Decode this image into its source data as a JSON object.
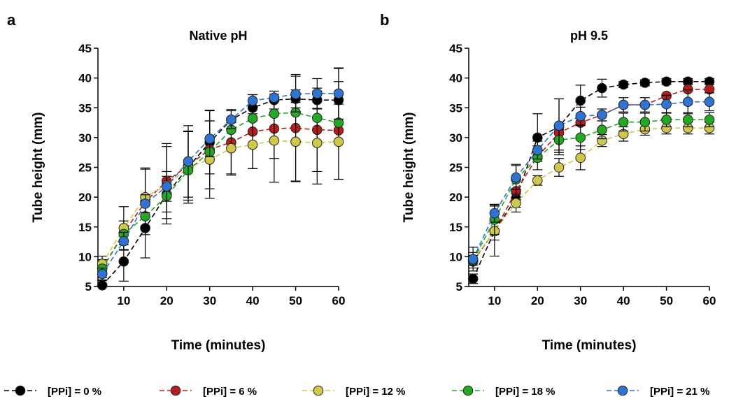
{
  "legend": [
    {
      "label": "[PPi] = 0 %",
      "color": "#000000"
    },
    {
      "label": "[PPi] = 6 %",
      "color": "#b51c1c"
    },
    {
      "label": "[PPi] = 12 %",
      "color": "#cfc84a"
    },
    {
      "label": "[PPi] = 18 %",
      "color": "#22a822"
    },
    {
      "label": "[PPi] = 21 %",
      "color": "#2f74d0"
    }
  ],
  "chart_data": [
    {
      "type": "line",
      "panel_label": "a",
      "title": "Native pH",
      "xlabel": "Time (minutes)",
      "ylabel": "Tube height (mm)",
      "xlim": [
        4,
        60
      ],
      "ylim": [
        5,
        45
      ],
      "xticks": [
        10,
        20,
        30,
        40,
        50,
        60
      ],
      "yticks": [
        5,
        10,
        15,
        20,
        25,
        30,
        35,
        40,
        45
      ],
      "x": [
        5,
        10,
        15,
        20,
        25,
        30,
        35,
        40,
        45,
        50,
        55,
        60
      ],
      "series": [
        {
          "name": "[PPi] = 0 %",
          "color": "#000000",
          "values": [
            5.2,
            9.2,
            14.8,
            20.5,
            25.0,
            29.2,
            33.0,
            35.0,
            36.3,
            36.5,
            36.3,
            36.3
          ],
          "errors": [
            0.8,
            3.3,
            5.0,
            3.0,
            6.0,
            5.3,
            0.3,
            1.0,
            1.5,
            1.5,
            1.5,
            5.3
          ]
        },
        {
          "name": "[PPi] = 6 %",
          "color": "#b51c1c",
          "values": [
            8.0,
            14.0,
            19.2,
            22.7,
            25.3,
            28.0,
            29.2,
            31.0,
            31.5,
            31.6,
            31.3,
            31.2
          ],
          "errors": [
            1.5,
            2.0,
            5.5,
            6.3,
            5.8,
            6.6,
            5.5,
            6.2,
            5.0,
            9.0,
            7.0,
            8.2
          ]
        },
        {
          "name": "[PPi] = 12 %",
          "color": "#cfc84a",
          "values": [
            8.8,
            14.8,
            20.0,
            22.0,
            25.0,
            26.3,
            28.2,
            28.8,
            29.5,
            29.3,
            29.1,
            29.3
          ],
          "errors": [
            1.3,
            3.6,
            4.9,
            6.5,
            6.0,
            6.5,
            4.3,
            4.0,
            7.0,
            6.6,
            6.9,
            6.3
          ]
        },
        {
          "name": "[PPi] = 18 %",
          "color": "#22a822",
          "values": [
            8.0,
            13.8,
            16.8,
            20.2,
            24.5,
            27.6,
            31.3,
            33.2,
            34.0,
            34.2,
            33.3,
            32.5
          ]
        },
        {
          "name": "[PPi] = 21 %",
          "color": "#2f74d0",
          "values": [
            7.1,
            12.6,
            18.9,
            21.8,
            26.0,
            29.8,
            33.0,
            36.2,
            36.7,
            37.3,
            37.4,
            37.4
          ],
          "errors": [
            1.0,
            1.5,
            1.5,
            2.5,
            6.0,
            3.0,
            1.5,
            1.0,
            0.6,
            3.0,
            2.5,
            4.3
          ]
        }
      ]
    },
    {
      "type": "line",
      "panel_label": "b",
      "title": "pH 9.5",
      "xlabel": "Time (minutes)",
      "ylabel": "Tube height (mm)",
      "xlim": [
        4,
        60
      ],
      "ylim": [
        5,
        45
      ],
      "xticks": [
        10,
        20,
        30,
        40,
        50,
        60
      ],
      "yticks": [
        5,
        10,
        15,
        20,
        25,
        30,
        35,
        40,
        45
      ],
      "x": [
        5,
        10,
        15,
        20,
        25,
        30,
        35,
        40,
        45,
        50,
        55,
        60
      ],
      "series": [
        {
          "name": "[PPi] = 0 %",
          "color": "#000000",
          "values": [
            6.3,
            14.3,
            19.8,
            30.0,
            31.8,
            36.2,
            38.3,
            38.9,
            39.2,
            39.4,
            39.4,
            39.4
          ],
          "errors": [
            0.8,
            4.2,
            1.5,
            4.0,
            4.7,
            2.6,
            1.5,
            0.5,
            0.5,
            0.5,
            0.5,
            0.5
          ]
        },
        {
          "name": "[PPi] = 6 %",
          "color": "#b51c1c",
          "values": [
            9.2,
            14.3,
            21.0,
            26.8,
            30.8,
            32.5,
            33.8,
            35.5,
            35.5,
            37.0,
            38.1,
            38.1
          ]
        },
        {
          "name": "[PPi] = 12 %",
          "color": "#cfc84a",
          "values": [
            9.4,
            14.3,
            19.0,
            22.8,
            25.0,
            26.6,
            29.5,
            30.6,
            31.4,
            31.6,
            31.6,
            31.6
          ],
          "errors": [
            1.3,
            1.5,
            1.5,
            0.8,
            1.5,
            2.0,
            1.0,
            1.2,
            1.0,
            1.0,
            1.0,
            1.0
          ]
        },
        {
          "name": "[PPi] = 18 %",
          "color": "#22a822",
          "values": [
            9.4,
            16.2,
            23.0,
            26.6,
            29.6,
            30.0,
            31.3,
            32.6,
            32.6,
            33.0,
            33.0,
            33.0
          ],
          "errors": [
            0.8,
            2.5,
            2.5,
            2.0,
            1.7,
            2.0,
            1.5,
            1.5,
            1.5,
            1.2,
            1.2,
            1.2
          ]
        },
        {
          "name": "[PPi] = 21 %",
          "color": "#2f74d0",
          "values": [
            9.6,
            17.3,
            23.3,
            27.9,
            32.0,
            33.6,
            33.8,
            35.5,
            35.5,
            35.6,
            36.0,
            36.0
          ],
          "errors": [
            2.0,
            1.5,
            2.0,
            1.5,
            4.5,
            1.5,
            1.0,
            1.2,
            1.2,
            1.5,
            2.0,
            1.5
          ]
        }
      ]
    }
  ]
}
